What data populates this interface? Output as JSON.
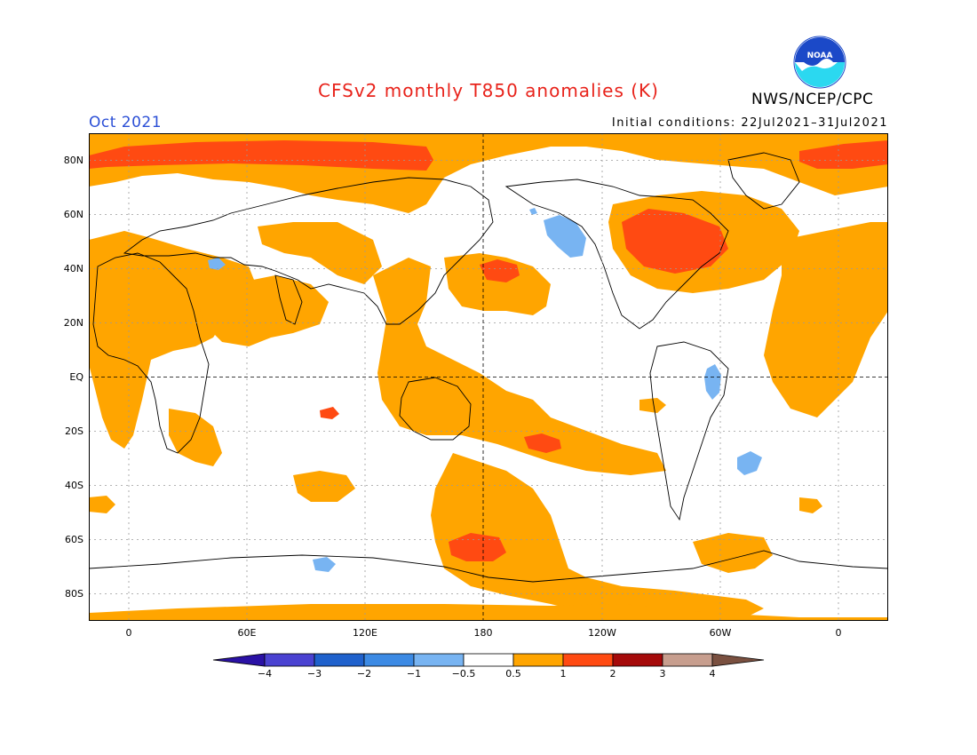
{
  "header": {
    "title": "CFSv2 monthly T850 anomalies (K)",
    "agency": "NWS/NCEP/CPC",
    "logo_text": "NOAA",
    "month": "Oct 2021",
    "initial_conditions": "Initial conditions: 22Jul2021–31Jul2021"
  },
  "colors": {
    "title": "#e8231b",
    "month": "#2b4fd6",
    "pos_05_1": "#ffa500",
    "pos_1_2": "#ff4a12",
    "neg_05_1": "#78b4f2",
    "coast": "#000000",
    "noaa_blue": "#1b49c8",
    "noaa_cyan": "#2bd8f0"
  },
  "axes": {
    "lat_labels": [
      "80N",
      "60N",
      "40N",
      "20N",
      "EQ",
      "20S",
      "40S",
      "60S",
      "80S"
    ],
    "lon_labels": [
      "0",
      "60E",
      "120E",
      "180",
      "120W",
      "60W",
      "0"
    ]
  },
  "colorbar": {
    "levels": [
      "−4",
      "−3",
      "−2",
      "−1",
      "−0.5",
      "0.5",
      "1",
      "2",
      "3",
      "4"
    ],
    "colors": [
      "#2a11a5",
      "#4a42d1",
      "#1f61cc",
      "#3c8ae4",
      "#78b4f2",
      "#ffffff",
      "#ffa500",
      "#ff4a12",
      "#a50a0a",
      "#c79e8e",
      "#7a5040"
    ]
  }
}
